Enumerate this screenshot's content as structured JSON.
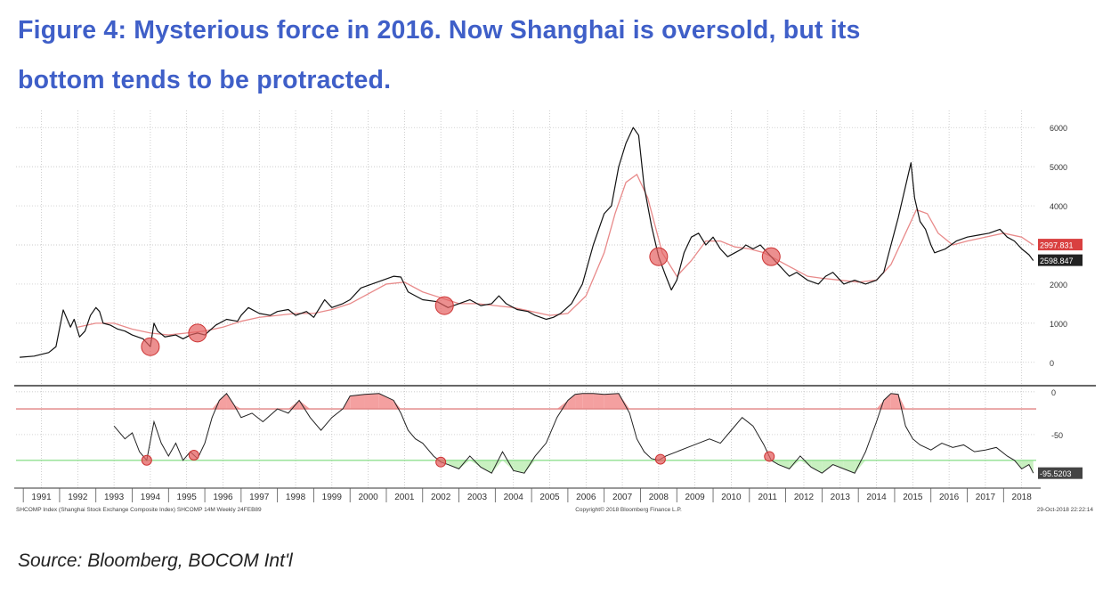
{
  "title": {
    "line1": "Figure 4: Mysterious force in 2016. Now Shanghai is oversold, but its",
    "line2": "bottom tends to be protracted."
  },
  "source": "Source: Bloomberg, BOCOM Int'l",
  "footer": {
    "left": "SHCOMP Index (Shanghai Stock Exchange Composite Index) SHCOMP 14M Weekly 24FEB89",
    "center": "Copyright© 2018 Bloomberg Finance L.P.",
    "right": "29-Oct-2018 22:22:14"
  },
  "colors": {
    "title": "#3f5fc8",
    "price_line": "#111111",
    "moving_average": "#e88a8a",
    "oversold_marker": "#e46060",
    "overbought_fill": "#f4a0a0",
    "oversold_fill": "#c8f0c0",
    "upper_threshold": "#e08080",
    "lower_threshold": "#90e090"
  },
  "chart_data": [
    {
      "type": "line",
      "panel": "price",
      "x_unit": "year",
      "xlim": [
        1990.8,
        2018.9
      ],
      "ylim": [
        -300,
        6300
      ],
      "y_ticks": [
        0,
        1000,
        2000,
        3000,
        4000,
        5000,
        6000
      ],
      "x_tick_labels": [
        "1991",
        "1992",
        "1993",
        "1994",
        "1995",
        "1996",
        "1997",
        "1998",
        "1999",
        "2000",
        "2001",
        "2002",
        "2003",
        "2004",
        "2005",
        "2006",
        "2007",
        "2008",
        "2009",
        "2010",
        "2011",
        "2012",
        "2013",
        "2014",
        "2015",
        "2016",
        "2017",
        "2018"
      ],
      "last_value_labels": [
        "2997.831",
        "2598.847"
      ],
      "series": [
        {
          "role": "price",
          "x": [
            1990.9,
            1991.3,
            1991.7,
            1991.9,
            1992.1,
            1992.3,
            1992.4,
            1992.55,
            1992.7,
            1992.85,
            1993.0,
            1993.1,
            1993.2,
            1993.4,
            1993.6,
            1993.8,
            1994.0,
            1994.3,
            1994.5,
            1994.6,
            1994.7,
            1994.9,
            1995.2,
            1995.4,
            1995.6,
            1995.8,
            1996.0,
            1996.3,
            1996.6,
            1996.9,
            1997.0,
            1997.2,
            1997.5,
            1997.8,
            1998.0,
            1998.3,
            1998.5,
            1998.8,
            1999.0,
            1999.3,
            1999.5,
            1999.8,
            2000.0,
            2000.3,
            2000.6,
            2000.9,
            2001.2,
            2001.4,
            2001.6,
            2001.8,
            2002.0,
            2002.4,
            2002.7,
            2003.0,
            2003.3,
            2003.6,
            2003.9,
            2004.1,
            2004.3,
            2004.6,
            2004.9,
            2005.1,
            2005.4,
            2005.6,
            2005.8,
            2006.1,
            2006.4,
            2006.7,
            2007.0,
            2007.2,
            2007.4,
            2007.6,
            2007.8,
            2007.95,
            2008.1,
            2008.3,
            2008.5,
            2008.7,
            2008.85,
            2009.0,
            2009.2,
            2009.4,
            2009.6,
            2009.8,
            2010.0,
            2010.2,
            2010.4,
            2010.6,
            2010.8,
            2010.9,
            2011.1,
            2011.3,
            2011.6,
            2011.9,
            2012.1,
            2012.3,
            2012.6,
            2012.9,
            2013.1,
            2013.3,
            2013.6,
            2013.9,
            2014.2,
            2014.5,
            2014.7,
            2014.9,
            2015.1,
            2015.3,
            2015.45,
            2015.55,
            2015.7,
            2015.85,
            2016.0,
            2016.1,
            2016.4,
            2016.7,
            2017.0,
            2017.3,
            2017.6,
            2017.9,
            2018.1,
            2018.3,
            2018.5,
            2018.7,
            2018.82
          ],
          "y": [
            130,
            160,
            250,
            400,
            1340,
            900,
            1100,
            650,
            800,
            1200,
            1400,
            1300,
            1000,
            950,
            850,
            800,
            700,
            600,
            400,
            1000,
            800,
            650,
            700,
            600,
            700,
            750,
            700,
            950,
            1100,
            1050,
            1200,
            1400,
            1250,
            1200,
            1300,
            1350,
            1200,
            1300,
            1150,
            1600,
            1400,
            1500,
            1600,
            1900,
            2000,
            2100,
            2200,
            2180,
            1800,
            1700,
            1600,
            1550,
            1400,
            1500,
            1600,
            1450,
            1500,
            1700,
            1500,
            1350,
            1300,
            1200,
            1100,
            1150,
            1250,
            1500,
            2000,
            3000,
            3800,
            4000,
            5000,
            5600,
            6000,
            5800,
            4500,
            3500,
            2700,
            2200,
            1850,
            2100,
            2800,
            3200,
            3300,
            3000,
            3200,
            2900,
            2700,
            2800,
            2900,
            3000,
            2900,
            3000,
            2700,
            2400,
            2200,
            2300,
            2100,
            2000,
            2200,
            2300,
            2000,
            2100,
            2000,
            2100,
            2300,
            3000,
            3700,
            4500,
            5100,
            4200,
            3600,
            3400,
            3000,
            2800,
            2900,
            3100,
            3200,
            3250,
            3300,
            3400,
            3200,
            3100,
            2900,
            2750,
            2600
          ]
        },
        {
          "role": "moving average",
          "x": [
            1992.5,
            1993.0,
            1993.5,
            1994.0,
            1994.5,
            1995.0,
            1995.5,
            1996.0,
            1996.5,
            1997.0,
            1997.5,
            1998.0,
            1998.5,
            1999.0,
            1999.5,
            2000.0,
            2000.5,
            2001.0,
            2001.5,
            2002.0,
            2002.5,
            2003.0,
            2003.5,
            2004.0,
            2004.5,
            2005.0,
            2005.5,
            2006.0,
            2006.5,
            2007.0,
            2007.3,
            2007.6,
            2007.9,
            2008.2,
            2008.6,
            2009.0,
            2009.4,
            2009.8,
            2010.2,
            2010.6,
            2011.0,
            2011.4,
            2011.8,
            2012.2,
            2012.6,
            2013.0,
            2013.5,
            2014.0,
            2014.5,
            2014.9,
            2015.3,
            2015.6,
            2015.9,
            2016.2,
            2016.6,
            2017.0,
            2017.5,
            2018.0,
            2018.5,
            2018.82
          ],
          "y": [
            900,
            1000,
            1000,
            850,
            750,
            700,
            750,
            800,
            900,
            1050,
            1150,
            1200,
            1250,
            1250,
            1350,
            1500,
            1750,
            2000,
            2050,
            1800,
            1650,
            1500,
            1500,
            1450,
            1400,
            1300,
            1200,
            1250,
            1700,
            2800,
            3800,
            4600,
            4800,
            4200,
            2800,
            2200,
            2600,
            3100,
            3100,
            2950,
            2900,
            2800,
            2600,
            2400,
            2200,
            2150,
            2100,
            2050,
            2100,
            2500,
            3300,
            3900,
            3800,
            3300,
            3000,
            3100,
            3200,
            3300,
            3200,
            2998
          ]
        }
      ],
      "oversold_markers_x": [
        1994.5,
        1995.8,
        2002.6,
        2008.5,
        2011.6
      ]
    },
    {
      "type": "line",
      "panel": "oscillator",
      "x_unit": "year",
      "xlim": [
        1990.8,
        2018.9
      ],
      "ylim": [
        -100,
        4
      ],
      "y_ticks": [
        0,
        -50
      ],
      "upper_threshold": -20,
      "lower_threshold": -80,
      "last_value_label": "-95.5203",
      "series": [
        {
          "role": "oscillator",
          "x": [
            1993.5,
            1993.8,
            1994.0,
            1994.2,
            1994.4,
            1994.6,
            1994.8,
            1995.0,
            1995.2,
            1995.4,
            1995.6,
            1995.8,
            1996.0,
            1996.2,
            1996.4,
            1996.6,
            1996.8,
            1997.0,
            1997.3,
            1997.6,
            1998.0,
            1998.3,
            1998.6,
            1998.9,
            1999.2,
            1999.5,
            1999.8,
            2000.0,
            2000.4,
            2000.8,
            2001.2,
            2001.4,
            2001.6,
            2001.8,
            2002.0,
            2002.3,
            2002.5,
            2002.7,
            2003.0,
            2003.3,
            2003.6,
            2003.9,
            2004.2,
            2004.5,
            2004.8,
            2005.1,
            2005.4,
            2005.7,
            2006.0,
            2006.2,
            2006.4,
            2006.7,
            2007.0,
            2007.4,
            2007.7,
            2007.9,
            2008.1,
            2008.3,
            2008.5,
            2008.7,
            2009.0,
            2009.3,
            2009.6,
            2009.9,
            2010.2,
            2010.5,
            2010.8,
            2011.1,
            2011.4,
            2011.6,
            2011.8,
            2012.1,
            2012.4,
            2012.7,
            2013.0,
            2013.3,
            2013.6,
            2013.9,
            2014.2,
            2014.5,
            2014.7,
            2014.9,
            2015.1,
            2015.3,
            2015.5,
            2015.7,
            2016.0,
            2016.3,
            2016.6,
            2016.9,
            2017.2,
            2017.5,
            2017.8,
            2018.1,
            2018.3,
            2018.5,
            2018.7,
            2018.82
          ],
          "y": [
            -40,
            -55,
            -48,
            -70,
            -80,
            -35,
            -60,
            -75,
            -60,
            -80,
            -70,
            -78,
            -60,
            -30,
            -10,
            -2,
            -15,
            -30,
            -25,
            -35,
            -20,
            -25,
            -10,
            -30,
            -45,
            -30,
            -20,
            -5,
            -3,
            -2,
            -10,
            -25,
            -45,
            -55,
            -60,
            -75,
            -82,
            -85,
            -90,
            -75,
            -88,
            -95,
            -70,
            -92,
            -95,
            -75,
            -60,
            -30,
            -10,
            -3,
            -2,
            -2,
            -3,
            -2,
            -25,
            -55,
            -70,
            -78,
            -80,
            -75,
            -70,
            -65,
            -60,
            -55,
            -60,
            -45,
            -30,
            -40,
            -62,
            -80,
            -85,
            -90,
            -75,
            -88,
            -95,
            -85,
            -90,
            -95,
            -70,
            -35,
            -10,
            -2,
            -3,
            -40,
            -55,
            -62,
            -68,
            -60,
            -65,
            -62,
            -70,
            -68,
            -65,
            -75,
            -80,
            -90,
            -85,
            -95
          ]
        }
      ],
      "oversold_markers_x": [
        1994.4,
        1995.7,
        2002.5,
        2008.55,
        2011.55
      ]
    }
  ]
}
